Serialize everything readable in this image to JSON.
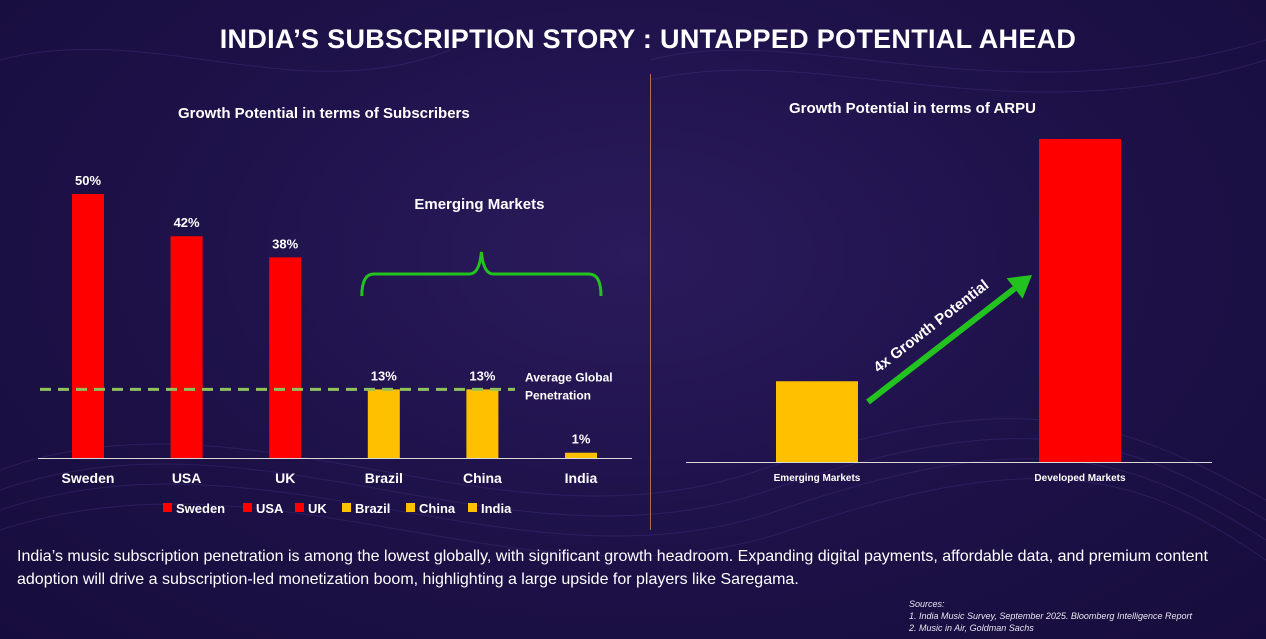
{
  "title": "INDIA’S SUBSCRIPTION STORY : UNTAPPED POTENTIAL AHEAD",
  "chart_data": [
    {
      "type": "bar",
      "title": "Growth Potential in terms of Subscribers",
      "categories": [
        "Sweden",
        "USA",
        "UK",
        "Brazil",
        "China",
        "India"
      ],
      "values": [
        50,
        42,
        38,
        13,
        13,
        1
      ],
      "data_labels": [
        "50%",
        "42%",
        "38%",
        "13%",
        "13%",
        "1%"
      ],
      "bar_colors": [
        "#ff0000",
        "#ff0000",
        "#ff0000",
        "#ffc000",
        "#ffc000",
        "#ffc000"
      ],
      "legend": [
        "Sweden",
        "USA",
        "UK",
        "Brazil",
        "China",
        "India"
      ],
      "legend_position": "bottom",
      "reference_line": {
        "value": 13,
        "label_line1": "Average Global",
        "label_line2": "Penetration",
        "color": "#8fc35a"
      },
      "group_annotation": {
        "label": "Emerging Markets",
        "color": "#22c31f"
      },
      "ylim": [
        0,
        55
      ],
      "grid": false
    },
    {
      "type": "bar",
      "title": "Growth Potential in terms of ARPU",
      "categories": [
        "Emerging Markets",
        "Developed Markets"
      ],
      "values": [
        1,
        4
      ],
      "bar_colors": [
        "#ffc000",
        "#ff0000"
      ],
      "annotation": "4x Growth Potential",
      "annotation_color": "#22c31f",
      "ylim": [
        0,
        4.3
      ],
      "grid": false
    }
  ],
  "description": "India’s music subscription penetration is among the lowest globally, with significant growth headroom. Expanding digital payments, affordable data, and premium content adoption will drive a subscription-led monetization boom,  highlighting a large upside for players like Saregama.",
  "sources": {
    "heading": "Sources:",
    "line1": "1. India Music Survey, September 2025. Bloomberg Intelligence Report",
    "line2": "2. Music in Air, Goldman Sachs"
  }
}
